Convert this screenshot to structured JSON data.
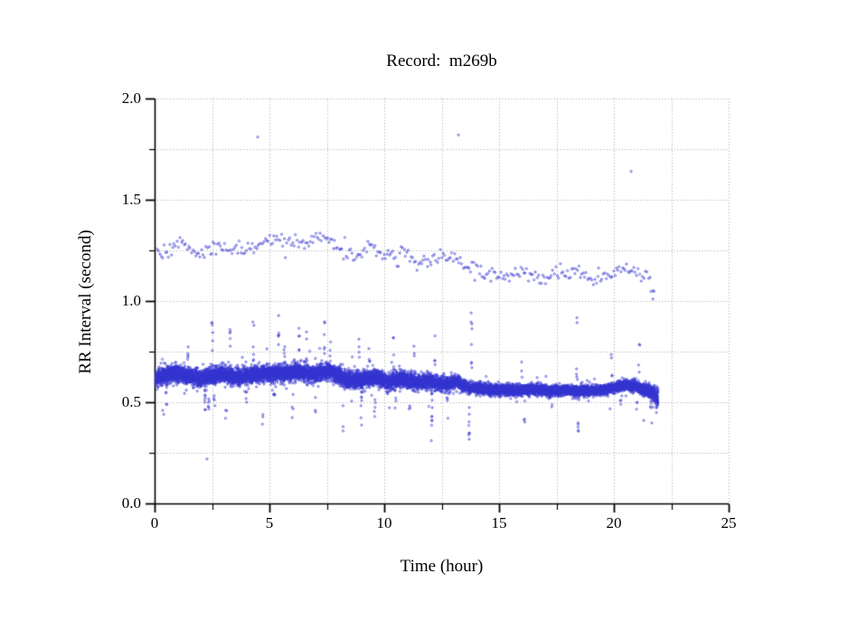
{
  "chart_data": {
    "type": "scatter",
    "title": "Record:  m269b",
    "xlabel": "Time (hour)",
    "ylabel": "RR Interval (second)",
    "xlim": [
      0,
      25
    ],
    "ylim": [
      0.0,
      2.0
    ],
    "x_ticks": [
      {
        "v": 0,
        "label": "0"
      },
      {
        "v": 5,
        "label": "5"
      },
      {
        "v": 10,
        "label": "10"
      },
      {
        "v": 15,
        "label": "15"
      },
      {
        "v": 20,
        "label": "20"
      },
      {
        "v": 25,
        "label": "25"
      }
    ],
    "x_minor_step": 2.5,
    "y_ticks": [
      {
        "v": 0.0,
        "label": "0.0"
      },
      {
        "v": 0.5,
        "label": "0.5"
      },
      {
        "v": 1.0,
        "label": "1.0"
      },
      {
        "v": 1.5,
        "label": "1.5"
      },
      {
        "v": 2.0,
        "label": "2.0"
      }
    ],
    "y_minor_step": 0.25,
    "grid": {
      "show": true,
      "style": "dotted",
      "color": "#a3a3a3"
    },
    "marker": {
      "shape": "open-circle",
      "radius_px": 1.1,
      "color": "#3434cf"
    },
    "axis_color": "#000000",
    "data_start_hour": 0.05,
    "data_end_hour": 21.9,
    "description": "RR-interval tachogram of Holter record m269b: a dense band of short RR intervals near 0.55-0.65 s drifting slowly downward over 22 hours, a sparse band of long RR intervals drifting from about 1.25-1.33 s down to about 1.12 s, and a few extreme outliers near 1.8 s.",
    "seed": 1337,
    "series": [
      {
        "name": "short-rr-band",
        "kind": "band",
        "count": 12500,
        "h_range": [
          0.05,
          21.92
        ],
        "mean_trend": [
          [
            0.0,
            0.615
          ],
          [
            0.4,
            0.635
          ],
          [
            1.0,
            0.64
          ],
          [
            1.5,
            0.63
          ],
          [
            2.0,
            0.615
          ],
          [
            2.4,
            0.63
          ],
          [
            3.0,
            0.64
          ],
          [
            3.6,
            0.625
          ],
          [
            4.2,
            0.63
          ],
          [
            5.0,
            0.645
          ],
          [
            5.6,
            0.64
          ],
          [
            6.2,
            0.65
          ],
          [
            7.0,
            0.64
          ],
          [
            7.6,
            0.655
          ],
          [
            8.0,
            0.63
          ],
          [
            8.4,
            0.605
          ],
          [
            9.0,
            0.61
          ],
          [
            9.6,
            0.625
          ],
          [
            10.2,
            0.6
          ],
          [
            10.8,
            0.615
          ],
          [
            11.4,
            0.6
          ],
          [
            12.0,
            0.605
          ],
          [
            12.6,
            0.59
          ],
          [
            13.2,
            0.6
          ],
          [
            13.6,
            0.575
          ],
          [
            14.0,
            0.57
          ],
          [
            14.6,
            0.565
          ],
          [
            15.2,
            0.56
          ],
          [
            16.0,
            0.56
          ],
          [
            16.6,
            0.565
          ],
          [
            17.2,
            0.555
          ],
          [
            18.0,
            0.56
          ],
          [
            18.6,
            0.555
          ],
          [
            19.2,
            0.555
          ],
          [
            19.8,
            0.565
          ],
          [
            20.4,
            0.585
          ],
          [
            20.9,
            0.58
          ],
          [
            21.2,
            0.565
          ],
          [
            21.5,
            0.56
          ],
          [
            21.7,
            0.545
          ],
          [
            21.9,
            0.52
          ]
        ],
        "sd_trend": [
          [
            0.0,
            0.02
          ],
          [
            8.0,
            0.02
          ],
          [
            12.0,
            0.018
          ],
          [
            13.5,
            0.013
          ],
          [
            20.0,
            0.012
          ],
          [
            21.4,
            0.014
          ],
          [
            21.9,
            0.022
          ]
        ]
      },
      {
        "name": "long-rr-band",
        "kind": "band",
        "count": 345,
        "h_range": [
          0.1,
          21.75
        ],
        "mean_trend": [
          [
            0.1,
            1.24
          ],
          [
            0.6,
            1.25
          ],
          [
            1.0,
            1.3
          ],
          [
            1.4,
            1.27
          ],
          [
            1.9,
            1.22
          ],
          [
            2.4,
            1.25
          ],
          [
            2.9,
            1.27
          ],
          [
            3.4,
            1.24
          ],
          [
            3.9,
            1.26
          ],
          [
            4.4,
            1.28
          ],
          [
            4.9,
            1.29
          ],
          [
            5.4,
            1.32
          ],
          [
            5.9,
            1.28
          ],
          [
            6.4,
            1.29
          ],
          [
            6.9,
            1.31
          ],
          [
            7.4,
            1.33
          ],
          [
            7.9,
            1.28
          ],
          [
            8.4,
            1.23
          ],
          [
            8.9,
            1.21
          ],
          [
            9.4,
            1.26
          ],
          [
            9.9,
            1.23
          ],
          [
            10.4,
            1.22
          ],
          [
            10.9,
            1.24
          ],
          [
            11.4,
            1.2
          ],
          [
            11.9,
            1.19
          ],
          [
            12.4,
            1.22
          ],
          [
            12.9,
            1.23
          ],
          [
            13.4,
            1.18
          ],
          [
            13.9,
            1.16
          ],
          [
            14.4,
            1.14
          ],
          [
            14.9,
            1.13
          ],
          [
            15.4,
            1.13
          ],
          [
            15.9,
            1.14
          ],
          [
            16.4,
            1.12
          ],
          [
            16.9,
            1.12
          ],
          [
            17.4,
            1.13
          ],
          [
            17.9,
            1.12
          ],
          [
            18.4,
            1.14
          ],
          [
            18.9,
            1.12
          ],
          [
            19.4,
            1.12
          ],
          [
            19.9,
            1.13
          ],
          [
            20.4,
            1.17
          ],
          [
            20.8,
            1.15
          ],
          [
            21.2,
            1.12
          ],
          [
            21.5,
            1.13
          ],
          [
            21.75,
            1.05
          ]
        ],
        "sd_trend": [
          [
            0.0,
            0.02
          ],
          [
            21.9,
            0.02
          ]
        ]
      },
      {
        "name": "spike-columns",
        "kind": "columns",
        "columns": [
          [
            0.5,
            0.45,
            0.55,
            4
          ],
          [
            2.2,
            0.42,
            0.56,
            8
          ],
          [
            2.35,
            0.44,
            0.52,
            6
          ],
          [
            2.6,
            0.46,
            0.55,
            4
          ],
          [
            3.1,
            0.36,
            0.5,
            3
          ],
          [
            4.0,
            0.5,
            0.56,
            4
          ],
          [
            4.7,
            0.35,
            0.5,
            3
          ],
          [
            5.2,
            0.48,
            0.56,
            4
          ],
          [
            6.0,
            0.35,
            0.52,
            3
          ],
          [
            7.0,
            0.44,
            0.55,
            3
          ],
          [
            8.2,
            0.35,
            0.5,
            3
          ],
          [
            9.0,
            0.38,
            0.56,
            8
          ],
          [
            9.6,
            0.42,
            0.56,
            5
          ],
          [
            10.5,
            0.44,
            0.55,
            3
          ],
          [
            11.1,
            0.4,
            0.5,
            3
          ],
          [
            12.07,
            0.36,
            0.55,
            10
          ],
          [
            12.75,
            0.42,
            0.55,
            5
          ],
          [
            13.7,
            0.3,
            0.55,
            9
          ],
          [
            16.1,
            0.4,
            0.52,
            3
          ],
          [
            17.3,
            0.46,
            0.53,
            2
          ],
          [
            18.45,
            0.31,
            0.52,
            5
          ],
          [
            20.3,
            0.46,
            0.54,
            3
          ],
          [
            21.0,
            0.42,
            0.5,
            3
          ],
          [
            21.6,
            0.38,
            0.5,
            4
          ],
          [
            21.85,
            0.44,
            0.52,
            6
          ],
          [
            1.45,
            0.7,
            0.78,
            5
          ],
          [
            2.5,
            0.7,
            0.97,
            6
          ],
          [
            3.3,
            0.7,
            0.88,
            5
          ],
          [
            4.3,
            0.7,
            0.9,
            6
          ],
          [
            5.4,
            0.72,
            0.93,
            6
          ],
          [
            5.65,
            0.7,
            0.88,
            4
          ],
          [
            6.3,
            0.7,
            0.91,
            5
          ],
          [
            6.6,
            0.7,
            0.86,
            4
          ],
          [
            7.4,
            0.72,
            0.92,
            6
          ],
          [
            7.65,
            0.7,
            0.88,
            4
          ],
          [
            8.9,
            0.68,
            0.85,
            4
          ],
          [
            9.35,
            0.66,
            0.8,
            4
          ],
          [
            10.4,
            0.66,
            0.82,
            4
          ],
          [
            11.3,
            0.64,
            0.8,
            4
          ],
          [
            12.2,
            0.66,
            0.84,
            4
          ],
          [
            13.8,
            0.62,
            0.95,
            8
          ],
          [
            16.0,
            0.6,
            0.78,
            3
          ],
          [
            18.4,
            0.6,
            0.92,
            6
          ],
          [
            19.9,
            0.6,
            0.78,
            3
          ],
          [
            21.1,
            0.62,
            0.8,
            4
          ]
        ]
      },
      {
        "name": "isolated-outliers",
        "kind": "points",
        "points": [
          [
            4.49,
            1.81
          ],
          [
            13.23,
            1.82
          ],
          [
            20.75,
            1.64
          ],
          [
            2.28,
            0.22
          ],
          [
            21.7,
            1.01
          ],
          [
            0.35,
            0.46
          ],
          [
            0.4,
            0.44
          ],
          [
            12.05,
            0.31
          ],
          [
            21.3,
            0.41
          ]
        ]
      }
    ]
  }
}
